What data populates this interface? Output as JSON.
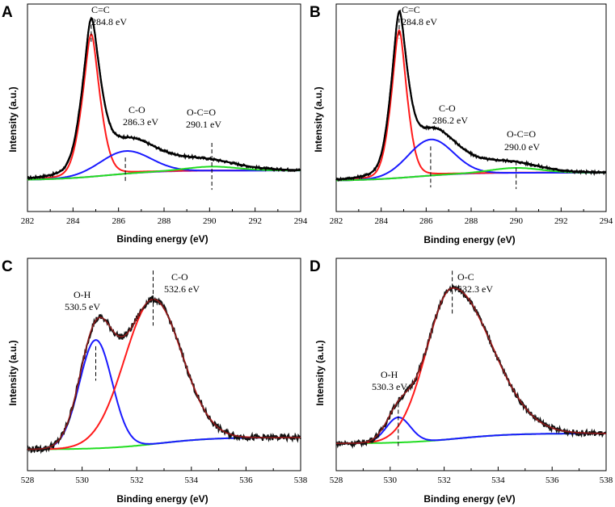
{
  "figure": {
    "panels": [
      "A",
      "B",
      "C",
      "D"
    ]
  },
  "colors": {
    "raw": "#111111",
    "envelope_c1s": "#000000",
    "envelope_o1s": "#8B1A1A",
    "red": "#ff1a1a",
    "blue": "#1a1aff",
    "green": "#22dd22",
    "purple": "#8a2be2"
  },
  "chart_data": [
    {
      "id": "A",
      "type": "line",
      "xlabel": "Binding energy (eV)",
      "ylabel": "Intensity (a.u.)",
      "xlim": [
        282,
        294
      ],
      "ylim": [
        0,
        100
      ],
      "xticks": [
        "282",
        "284",
        "286",
        "288",
        "290",
        "292",
        "294"
      ],
      "baseline": {
        "kind": "step",
        "start": 4,
        "end": 10,
        "center": 285.5,
        "width": 1.2,
        "color_key": "purple"
      },
      "peaks": [
        {
          "name": "C=C",
          "center": 284.8,
          "height": 88,
          "sigma": 0.45,
          "gamma": 0.3,
          "color_key": "red"
        },
        {
          "name": "C-O",
          "center": 286.3,
          "height": 14,
          "sigma": 1.1,
          "gamma": 0.0,
          "color_key": "blue"
        },
        {
          "name": "O-C=O",
          "center": 290.1,
          "height": 2.5,
          "sigma": 1.1,
          "gamma": 0.0,
          "color_key": "green"
        }
      ],
      "tail": {
        "amp": 8,
        "center": 287.5,
        "sigma": 2.4
      },
      "noise": 0.8,
      "envelope_color_key": "envelope_c1s",
      "annotations": [
        {
          "line1": "C=C",
          "line2": "284.8 eV",
          "x": 284.8,
          "dash_from": 100,
          "dash_to": 88
        },
        {
          "line1": "C-O",
          "line2": "286.3 eV",
          "x": 286.3,
          "dash_from": 18,
          "dash_to": 2
        },
        {
          "line1": "O-C=O",
          "line2": "290.1 eV",
          "x": 290.1,
          "dash_from": 27,
          "dash_to": -2
        }
      ]
    },
    {
      "id": "B",
      "type": "line",
      "xlabel": "Binding energy (eV)",
      "ylabel": "Intensity (a.u.)",
      "xlim": [
        282,
        294
      ],
      "ylim": [
        0,
        100
      ],
      "xticks": [
        "282",
        "284",
        "286",
        "288",
        "290",
        "292",
        "294"
      ],
      "baseline": {
        "kind": "step",
        "start": 1,
        "end": 6,
        "center": 285.5,
        "width": 1.2,
        "color_key": "purple"
      },
      "peaks": [
        {
          "name": "C=C",
          "center": 284.8,
          "height": 90,
          "sigma": 0.4,
          "gamma": 0.28,
          "color_key": "red"
        },
        {
          "name": "C-O",
          "center": 286.2,
          "height": 22,
          "sigma": 1.0,
          "gamma": 0.0,
          "color_key": "blue"
        },
        {
          "name": "O-C=O",
          "center": 290.0,
          "height": 3,
          "sigma": 1.1,
          "gamma": 0.0,
          "color_key": "green"
        }
      ],
      "tail": {
        "amp": 7,
        "center": 287.5,
        "sigma": 2.2
      },
      "noise": 0.8,
      "envelope_color_key": "envelope_c1s",
      "annotations": [
        {
          "line1": "C=C",
          "line2": "284.8 eV",
          "x": 284.8,
          "dash_from": 100,
          "dash_to": 88
        },
        {
          "line1": "C-O",
          "line2": "286.2 eV",
          "x": 286.2,
          "dash_from": 22,
          "dash_to": -3
        },
        {
          "line1": "O-C=O",
          "line2": "290.0 eV",
          "x": 290.0,
          "dash_from": 13,
          "dash_to": -4
        }
      ]
    },
    {
      "id": "C",
      "type": "line",
      "xlabel": "Binding energy (eV)",
      "ylabel": "Intensity (a.u.)",
      "xlim": [
        528,
        538
      ],
      "ylim": [
        0,
        100
      ],
      "xticks": [
        "528",
        "530",
        "532",
        "534",
        "536",
        "538"
      ],
      "baseline": {
        "kind": "step",
        "start": 0,
        "end": 7,
        "center": 532.8,
        "width": 1.0,
        "color_key": "green"
      },
      "peaks": [
        {
          "name": "O-H",
          "center": 530.5,
          "height": 63,
          "sigma": 0.6,
          "gamma": 0.0,
          "color_key": "blue"
        },
        {
          "name": "C-O",
          "center": 532.6,
          "height": 84,
          "sigma": 1.05,
          "gamma": 0.0,
          "color_key": "red"
        }
      ],
      "tail": {
        "amp": 0,
        "center": 0,
        "sigma": 1
      },
      "noise": 1.8,
      "envelope_color_key": "envelope_o1s",
      "annotations": [
        {
          "line1": "O-H",
          "line2": "530.5 eV",
          "x": 530.5,
          "dash_from": 60,
          "dash_to": 40
        },
        {
          "line1": "C-O",
          "line2": "532.6 eV",
          "x": 532.6,
          "dash_from": 104,
          "dash_to": 72
        }
      ]
    },
    {
      "id": "D",
      "type": "line",
      "xlabel": "Binding energy (eV)",
      "ylabel": "Intensity (a.u.)",
      "xlim": [
        528,
        538
      ],
      "ylim": [
        0,
        100
      ],
      "xticks": [
        "528",
        "530",
        "532",
        "534",
        "536",
        "538"
      ],
      "baseline": {
        "kind": "step",
        "start": 1,
        "end": 7,
        "center": 532.5,
        "width": 1.0,
        "color_key": "green"
      },
      "peaks": [
        {
          "name": "O-H",
          "center": 530.3,
          "height": 15,
          "sigma": 0.45,
          "gamma": 0.0,
          "color_key": "blue"
        },
        {
          "name": "O-C",
          "center": 532.3,
          "height": 90,
          "sigma": 0.95,
          "sigmaR": 1.45,
          "gamma": 0.0,
          "color_key": "red"
        }
      ],
      "tail": {
        "amp": 0,
        "center": 0,
        "sigma": 1
      },
      "noise": 1.6,
      "envelope_color_key": "envelope_o1s",
      "annotations": [
        {
          "line1": "O-H",
          "line2": "530.3 eV",
          "x": 530.3,
          "dash_from": 25,
          "dash_to": -2
        },
        {
          "line1": "O-C",
          "line2": "532.3 eV",
          "x": 532.3,
          "dash_from": 104,
          "dash_to": 78
        }
      ]
    }
  ]
}
